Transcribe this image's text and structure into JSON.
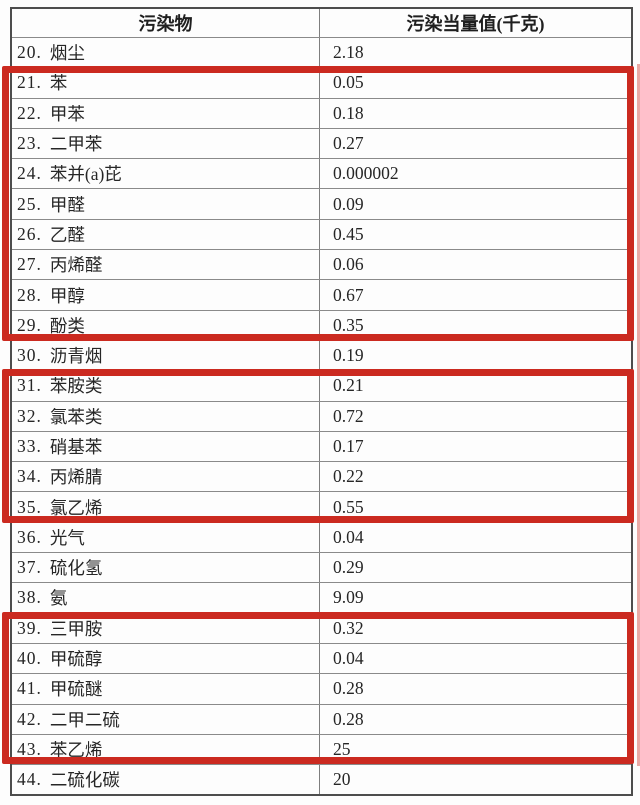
{
  "table": {
    "headers": {
      "pollutant": "污染物",
      "value": "污染当量值(千克)"
    },
    "rows": [
      {
        "no": "20.",
        "name": "烟尘",
        "value": "2.18"
      },
      {
        "no": "21.",
        "name": "苯",
        "value": "0.05"
      },
      {
        "no": "22.",
        "name": "甲苯",
        "value": "0.18"
      },
      {
        "no": "23.",
        "name": "二甲苯",
        "value": "0.27"
      },
      {
        "no": "24.",
        "name": "苯并(a)芘",
        "value": "0.000002"
      },
      {
        "no": "25.",
        "name": "甲醛",
        "value": "0.09"
      },
      {
        "no": "26.",
        "name": "乙醛",
        "value": "0.45"
      },
      {
        "no": "27.",
        "name": "丙烯醛",
        "value": "0.06"
      },
      {
        "no": "28.",
        "name": "甲醇",
        "value": "0.67"
      },
      {
        "no": "29.",
        "name": "酚类",
        "value": "0.35"
      },
      {
        "no": "30.",
        "name": "沥青烟",
        "value": "0.19"
      },
      {
        "no": "31.",
        "name": "苯胺类",
        "value": "0.21"
      },
      {
        "no": "32.",
        "name": "氯苯类",
        "value": "0.72"
      },
      {
        "no": "33.",
        "name": "硝基苯",
        "value": "0.17"
      },
      {
        "no": "34.",
        "name": "丙烯腈",
        "value": "0.22"
      },
      {
        "no": "35.",
        "name": "氯乙烯",
        "value": "0.55"
      },
      {
        "no": "36.",
        "name": "光气",
        "value": "0.04"
      },
      {
        "no": "37.",
        "name": "硫化氢",
        "value": "0.29"
      },
      {
        "no": "38.",
        "name": "氨",
        "value": "9.09"
      },
      {
        "no": "39.",
        "name": "三甲胺",
        "value": "0.32"
      },
      {
        "no": "40.",
        "name": "甲硫醇",
        "value": "0.04"
      },
      {
        "no": "41.",
        "name": "甲硫醚",
        "value": "0.28"
      },
      {
        "no": "42.",
        "name": "二甲二硫",
        "value": "0.28"
      },
      {
        "no": "43.",
        "name": "苯乙烯",
        "value": "25"
      },
      {
        "no": "44.",
        "name": "二硫化碳",
        "value": "20"
      }
    ],
    "highlights": [
      {
        "rows": "21-29",
        "color": "#cb2a20"
      },
      {
        "rows": "31-35",
        "color": "#cb2a20"
      },
      {
        "rows": "39-43",
        "color": "#cb2a20"
      }
    ]
  }
}
